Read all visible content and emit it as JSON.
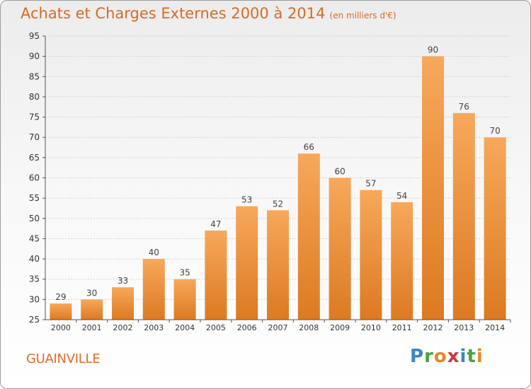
{
  "title": "Achats et Charges Externes 2000 à 2014",
  "subtitle": "(en milliers d'€)",
  "location_label": "GUAINVILLE",
  "logo_text": "Proxiti",
  "colors": {
    "title": "#d86a24",
    "bar_top": "#f7a85a",
    "bar_bottom": "#dc7a22",
    "grid": "#cfcfcf",
    "axis": "#555555"
  },
  "chart_data": {
    "type": "bar",
    "title": "Achats et Charges Externes 2000 à 2014",
    "subtitle": "(en milliers d'€)",
    "xlabel": "",
    "ylabel": "",
    "categories": [
      "2000",
      "2001",
      "2002",
      "2003",
      "2004",
      "2005",
      "2006",
      "2007",
      "2008",
      "2009",
      "2010",
      "2011",
      "2012",
      "2013",
      "2014"
    ],
    "values": [
      29,
      30,
      33,
      40,
      35,
      47,
      53,
      52,
      66,
      60,
      57,
      54,
      90,
      76,
      70
    ],
    "ylim": [
      25,
      95
    ],
    "yticks": [
      25,
      30,
      35,
      40,
      45,
      50,
      55,
      60,
      65,
      70,
      75,
      80,
      85,
      90,
      95
    ],
    "grid": true,
    "data_labels": true
  }
}
